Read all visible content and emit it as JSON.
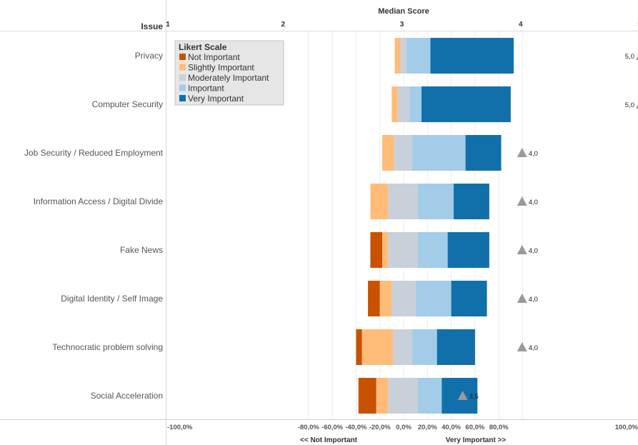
{
  "chart_data": {
    "type": "bar",
    "stacking": "diverging-stacked",
    "top_axis_title": "Median Score",
    "row_header": "Issue",
    "top_axis_ticks": [
      "1",
      "2",
      "3",
      "4",
      "5"
    ],
    "top_axis_range": [
      1,
      5
    ],
    "x_range_pct": [
      -100,
      100
    ],
    "x_ticks": [
      "-100,0%",
      "-80,0%",
      "-60,0%",
      "-40,0%",
      "-20,0%",
      "0,0%",
      "20,0%",
      "40,0%",
      "60,0%",
      "80,0%",
      "100,0%"
    ],
    "x_tick_values": [
      -100,
      -80,
      -60,
      -40,
      -20,
      0,
      20,
      40,
      60,
      80,
      100
    ],
    "bottom_left_label": "<< Not Important",
    "bottom_right_label": "Very Important >>",
    "legend": {
      "title": "Likert Scale",
      "placement": "top-left",
      "items": [
        {
          "name": "Not Important",
          "color": "#c85200"
        },
        {
          "name": "Slightly Important",
          "color": "#ffbc79"
        },
        {
          "name": "Moderately Important",
          "color": "#c8d0d9"
        },
        {
          "name": "Important",
          "color": "#a3cce9"
        },
        {
          "name": "Very Important",
          "color": "#1170aa"
        }
      ]
    },
    "marker_color": "#9a9a9a",
    "categories": [
      "Privacy",
      "Computer Security",
      "Job Security / Reduced Employment",
      "Information Access / Digital Divide",
      "Fake News",
      "Digital Identity / Self Image",
      "Technocratic problem solving",
      "Social Acceleration"
    ],
    "start_pct": [
      -7.5,
      -10,
      -18,
      -28,
      -28,
      -30,
      -40,
      -38
    ],
    "series": [
      {
        "name": "Not Important",
        "values": [
          0,
          0,
          0,
          0,
          10,
          10,
          5,
          15
        ]
      },
      {
        "name": "Slightly Important",
        "values": [
          5,
          5,
          10,
          15,
          5,
          10,
          26,
          10
        ]
      },
      {
        "name": "Moderately Important",
        "values": [
          5,
          10,
          15,
          25,
          25,
          20,
          16,
          25
        ]
      },
      {
        "name": "Important",
        "values": [
          20,
          10,
          45,
          30,
          25,
          30,
          21,
          20
        ]
      },
      {
        "name": "Very Important",
        "values": [
          70,
          75,
          30,
          30,
          35,
          30,
          32,
          30
        ]
      }
    ],
    "medians": [
      5.0,
      5.0,
      4.0,
      4.0,
      4.0,
      4.0,
      4.0,
      3.5
    ],
    "median_labels": [
      "5,0",
      "5,0",
      "4,0",
      "4,0",
      "4,0",
      "4,0",
      "4,0",
      "3,5"
    ]
  }
}
